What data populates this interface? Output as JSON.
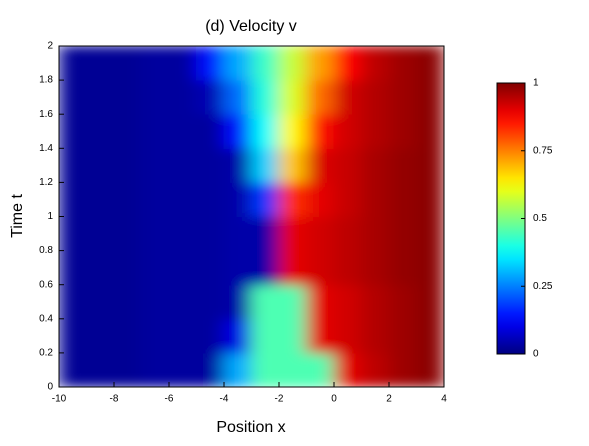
{
  "chart_data": {
    "type": "heatmap",
    "title": "(d) Velocity v",
    "xlabel": "Position x",
    "ylabel": "Time t",
    "x_bins": [
      -10,
      -9,
      -8,
      -7,
      -6,
      -5,
      -4,
      -3,
      -2,
      -1,
      0,
      1,
      2,
      3,
      4
    ],
    "y_bins": [
      0,
      0.2,
      0.4,
      0.6,
      0.8,
      1,
      1.2,
      1.4,
      1.6,
      1.8,
      2
    ],
    "values": [
      [
        0.02,
        0.02,
        0.02,
        0.03,
        0.03,
        0.03,
        0.29,
        0.45,
        0.45,
        0.45,
        0.9,
        0.94,
        0.97,
        0.99
      ],
      [
        0.02,
        0.02,
        0.02,
        0.03,
        0.03,
        0.03,
        0.1,
        0.45,
        0.45,
        0.9,
        0.92,
        0.95,
        0.97,
        0.99
      ],
      [
        0.02,
        0.02,
        0.02,
        0.03,
        0.03,
        0.03,
        0.04,
        0.45,
        0.45,
        0.9,
        0.92,
        0.95,
        0.97,
        0.99
      ],
      [
        0.02,
        0.02,
        0.02,
        0.03,
        0.03,
        0.03,
        0.04,
        0.04,
        0.9,
        0.92,
        0.94,
        0.96,
        0.98,
        0.99
      ],
      [
        0.02,
        0.02,
        0.02,
        0.03,
        0.03,
        0.03,
        0.04,
        0.04,
        0.9,
        0.92,
        0.94,
        0.96,
        0.98,
        0.99
      ],
      [
        0.02,
        0.02,
        0.02,
        0.03,
        0.03,
        0.03,
        0.04,
        0.18,
        0.83,
        0.9,
        0.93,
        0.96,
        0.98,
        0.99
      ],
      [
        0.02,
        0.02,
        0.02,
        0.03,
        0.03,
        0.03,
        0.04,
        0.33,
        0.68,
        0.91,
        0.93,
        0.96,
        0.98,
        0.99
      ],
      [
        0.02,
        0.02,
        0.02,
        0.03,
        0.03,
        0.03,
        0.14,
        0.38,
        0.63,
        0.86,
        0.92,
        0.95,
        0.97,
        0.99
      ],
      [
        0.02,
        0.02,
        0.02,
        0.03,
        0.03,
        0.05,
        0.23,
        0.41,
        0.59,
        0.77,
        0.92,
        0.95,
        0.97,
        0.99
      ],
      [
        0.02,
        0.02,
        0.02,
        0.03,
        0.03,
        0.14,
        0.29,
        0.43,
        0.57,
        0.72,
        0.87,
        0.94,
        0.97,
        0.99
      ]
    ],
    "colormap": "jet",
    "xlim": [
      -10,
      4
    ],
    "xticks": [
      -10,
      -8,
      -6,
      -4,
      -2,
      0,
      2,
      4
    ],
    "ylim": [
      0,
      2
    ],
    "yticks": [
      0,
      0.2,
      0.4,
      0.6,
      0.8,
      1,
      1.2,
      1.4,
      1.6,
      1.8,
      2
    ],
    "clim": [
      0,
      1
    ],
    "cticks": [
      0,
      0.25,
      0.5,
      0.75,
      1
    ]
  }
}
